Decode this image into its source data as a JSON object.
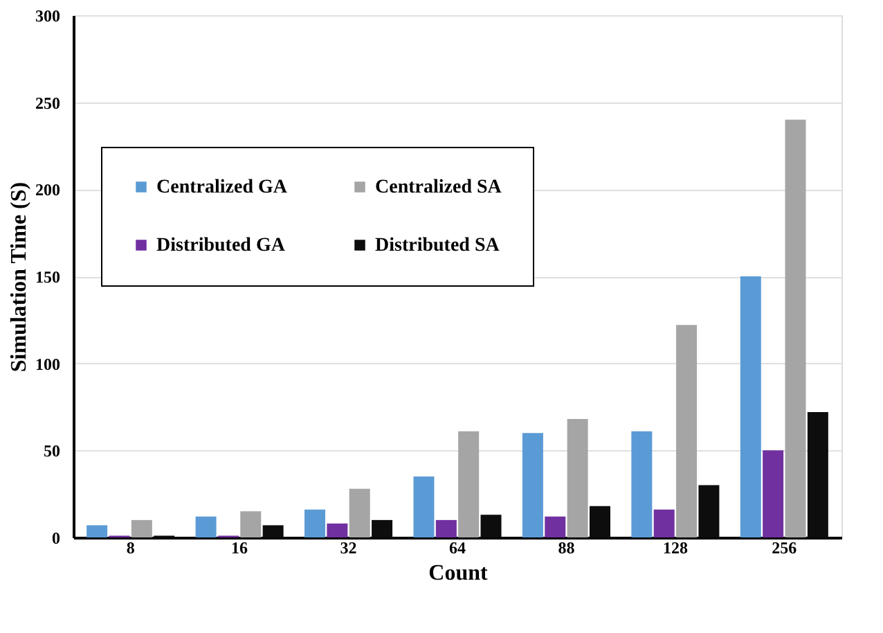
{
  "chart_data": {
    "type": "bar",
    "xlabel": "Count",
    "ylabel": "Simulation Time (S)",
    "categories": [
      "8",
      "16",
      "32",
      "64",
      "88",
      "128",
      "256"
    ],
    "series": [
      {
        "name": "Centralized GA",
        "color": "#5b9bd5",
        "values": [
          7,
          12,
          16,
          35,
          60,
          61,
          150
        ]
      },
      {
        "name": "Distributed GA",
        "color": "#7030a0",
        "values": [
          1,
          1,
          8,
          10,
          12,
          16,
          50
        ]
      },
      {
        "name": "Centralized SA",
        "color": "#a5a5a5",
        "values": [
          10,
          15,
          28,
          61,
          68,
          122,
          240
        ]
      },
      {
        "name": "Distributed SA",
        "color": "#0d0d0d",
        "values": [
          1,
          7,
          10,
          13,
          18,
          30,
          72
        ]
      }
    ],
    "ylim": [
      0,
      300
    ],
    "yticks": [
      0,
      50,
      100,
      150,
      200,
      250,
      300
    ],
    "grid": "y",
    "legend": "top left"
  }
}
